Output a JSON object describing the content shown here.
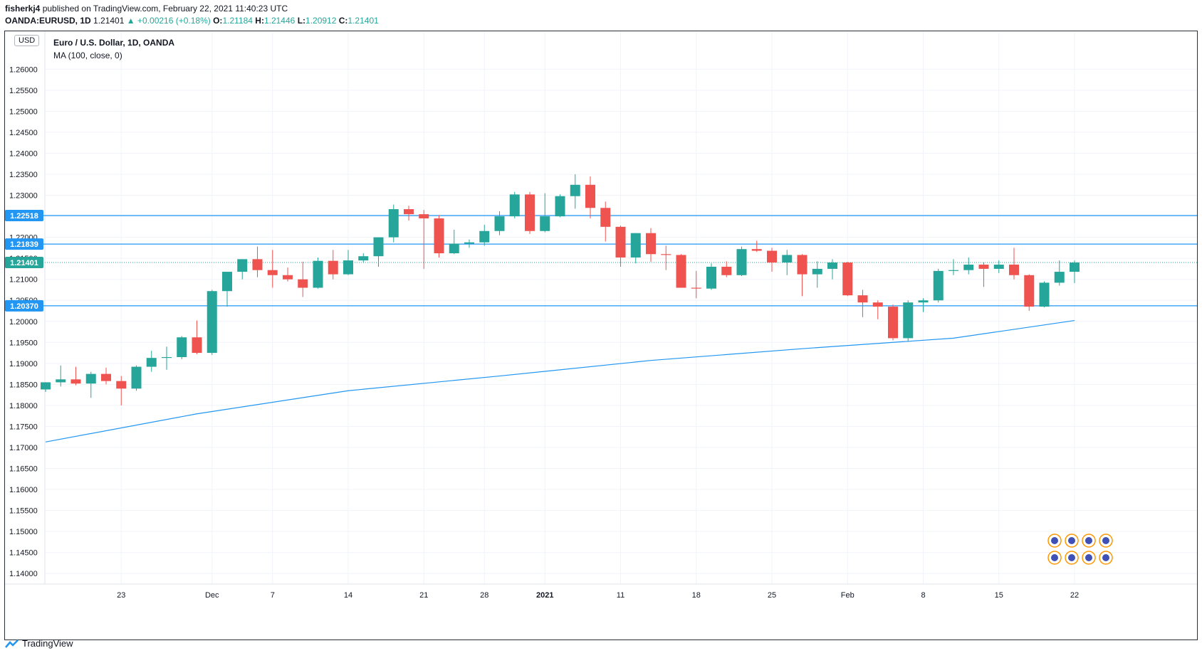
{
  "header": {
    "author": "fisherkj4",
    "published": "published on TradingView.com, February 22, 2021 11:40:23 UTC",
    "symbol": "OANDA:EURUSD, 1D",
    "last": "1.21401",
    "arrow": "▲",
    "change": "+0.00216 (+0.18%)",
    "o_label": "O:",
    "o_val": "1.21184",
    "h_label": "H:",
    "h_val": "1.21446",
    "l_label": "L:",
    "l_val": "1.20912",
    "c_label": "C:",
    "c_val": "1.21401"
  },
  "legend": {
    "title": "Euro / U.S. Dollar, 1D, OANDA",
    "indicator": "MA (100, close, 0)",
    "currency": "USD"
  },
  "footer": {
    "brand": "TradingView"
  },
  "colors": {
    "up": "#26a69a",
    "down": "#ef5350",
    "ma": "#2196f3",
    "hline": "#2196f3",
    "grid": "#f0f3fa",
    "axis_text": "#131722"
  },
  "chart_data": {
    "type": "candlestick",
    "title": "Euro / U.S. Dollar, 1D, OANDA",
    "ylabel": "USD",
    "ylim": [
      1.1375,
      1.2675
    ],
    "y_ticks": [
      "1.26000",
      "1.25500",
      "1.25000",
      "1.24500",
      "1.24000",
      "1.23500",
      "1.23000",
      "1.22500",
      "1.22000",
      "1.21500",
      "1.21000",
      "1.20500",
      "1.20000",
      "1.19500",
      "1.19000",
      "1.18500",
      "1.18000",
      "1.17500",
      "1.17000",
      "1.16500",
      "1.16000",
      "1.15500",
      "1.15000",
      "1.14500",
      "1.14000"
    ],
    "x_ticks": [
      {
        "label": "23",
        "index": 5
      },
      {
        "label": "Dec",
        "index": 11
      },
      {
        "label": "7",
        "index": 15
      },
      {
        "label": "14",
        "index": 20
      },
      {
        "label": "21",
        "index": 25
      },
      {
        "label": "28",
        "index": 29
      },
      {
        "label": "2021",
        "index": 33
      },
      {
        "label": "11",
        "index": 38
      },
      {
        "label": "18",
        "index": 43
      },
      {
        "label": "25",
        "index": 48
      },
      {
        "label": "Feb",
        "index": 53
      },
      {
        "label": "8",
        "index": 58
      },
      {
        "label": "15",
        "index": 63
      },
      {
        "label": "22",
        "index": 68
      }
    ],
    "candles": [
      [
        1.1838,
        1.1855,
        1.1832,
        1.1855
      ],
      [
        1.1855,
        1.1895,
        1.1845,
        1.1862
      ],
      [
        1.1862,
        1.1892,
        1.1848,
        1.1852
      ],
      [
        1.1852,
        1.188,
        1.1818,
        1.1875
      ],
      [
        1.1875,
        1.189,
        1.185,
        1.1858
      ],
      [
        1.1858,
        1.187,
        1.18,
        1.184
      ],
      [
        1.184,
        1.1895,
        1.1835,
        1.1892
      ],
      [
        1.1892,
        1.193,
        1.188,
        1.1913
      ],
      [
        1.1913,
        1.194,
        1.1885,
        1.1915
      ],
      [
        1.1915,
        1.1965,
        1.191,
        1.1962
      ],
      [
        1.1962,
        1.2002,
        1.1922,
        1.1925
      ],
      [
        1.1925,
        1.2075,
        1.192,
        1.2072
      ],
      [
        1.2072,
        1.2112,
        1.2035,
        1.2118
      ],
      [
        1.2118,
        1.2148,
        1.21,
        1.2148
      ],
      [
        1.2148,
        1.2178,
        1.2105,
        1.2122
      ],
      [
        1.2122,
        1.217,
        1.208,
        1.211
      ],
      [
        1.211,
        1.2128,
        1.2095,
        1.21
      ],
      [
        1.21,
        1.2142,
        1.2058,
        1.208
      ],
      [
        1.208,
        1.2152,
        1.2078,
        1.2144
      ],
      [
        1.2144,
        1.217,
        1.21,
        1.2112
      ],
      [
        1.2112,
        1.217,
        1.211,
        1.2145
      ],
      [
        1.2145,
        1.2162,
        1.214,
        1.2155
      ],
      [
        1.2155,
        1.22,
        1.213,
        1.22
      ],
      [
        1.22,
        1.2278,
        1.2188,
        1.2267
      ],
      [
        1.2267,
        1.2275,
        1.224,
        1.2255
      ],
      [
        1.2255,
        1.2265,
        1.2125,
        1.2245
      ],
      [
        1.2245,
        1.2252,
        1.2152,
        1.2162
      ],
      [
        1.2162,
        1.2218,
        1.216,
        1.2185
      ],
      [
        1.2185,
        1.2195,
        1.2175,
        1.2188
      ],
      [
        1.2188,
        1.223,
        1.218,
        1.2215
      ],
      [
        1.2215,
        1.2262,
        1.2205,
        1.225
      ],
      [
        1.225,
        1.2308,
        1.2245,
        1.2302
      ],
      [
        1.2302,
        1.2308,
        1.2208,
        1.2215
      ],
      [
        1.2215,
        1.2305,
        1.2212,
        1.225
      ],
      [
        1.225,
        1.2302,
        1.2248,
        1.2298
      ],
      [
        1.2298,
        1.235,
        1.2268,
        1.2325
      ],
      [
        1.2325,
        1.2345,
        1.2245,
        1.227
      ],
      [
        1.227,
        1.2285,
        1.219,
        1.2225
      ],
      [
        1.2225,
        1.2228,
        1.213,
        1.2152
      ],
      [
        1.2152,
        1.221,
        1.2138,
        1.221
      ],
      [
        1.221,
        1.2222,
        1.2142,
        1.216
      ],
      [
        1.216,
        1.218,
        1.2122,
        1.2158
      ],
      [
        1.2158,
        1.216,
        1.208,
        1.208
      ],
      [
        1.208,
        1.212,
        1.2055,
        1.2078
      ],
      [
        1.2078,
        1.2138,
        1.2075,
        1.213
      ],
      [
        1.213,
        1.2143,
        1.2105,
        1.211
      ],
      [
        1.211,
        1.2178,
        1.2108,
        1.2172
      ],
      [
        1.2172,
        1.2192,
        1.2165,
        1.2168
      ],
      [
        1.2168,
        1.2175,
        1.2118,
        1.214
      ],
      [
        1.214,
        1.217,
        1.211,
        1.2158
      ],
      [
        1.2158,
        1.216,
        1.206,
        1.2112
      ],
      [
        1.2112,
        1.2143,
        1.208,
        1.2125
      ],
      [
        1.2125,
        1.2148,
        1.21,
        1.214
      ],
      [
        1.214,
        1.2142,
        1.206,
        1.2062
      ],
      [
        1.2062,
        1.2075,
        1.201,
        1.2045
      ],
      [
        1.2045,
        1.205,
        1.2005,
        1.2035
      ],
      [
        1.2035,
        1.204,
        1.1955,
        1.196
      ],
      [
        1.196,
        1.205,
        1.1952,
        1.2045
      ],
      [
        1.2045,
        1.2055,
        1.2022,
        1.205
      ],
      [
        1.205,
        1.2125,
        1.2045,
        1.212
      ],
      [
        1.212,
        1.2148,
        1.211,
        1.2122
      ],
      [
        1.2122,
        1.2152,
        1.2112,
        1.2135
      ],
      [
        1.2135,
        1.214,
        1.2082,
        1.2125
      ],
      [
        1.2125,
        1.2145,
        1.2115,
        1.2135
      ],
      [
        1.2135,
        1.2175,
        1.21,
        1.211
      ],
      [
        1.211,
        1.2112,
        1.2025,
        1.2035
      ],
      [
        1.2035,
        1.2095,
        1.2033,
        1.2092
      ],
      [
        1.2092,
        1.2145,
        1.2085,
        1.2118
      ],
      [
        1.2118,
        1.2145,
        1.2091,
        1.214
      ]
    ],
    "series": [
      {
        "name": "MA (100, close, 0)",
        "type": "line",
        "points": [
          [
            0,
            1.1713
          ],
          [
            10,
            1.178
          ],
          [
            20,
            1.1835
          ],
          [
            30,
            1.187
          ],
          [
            40,
            1.1907
          ],
          [
            50,
            1.1935
          ],
          [
            60,
            1.196
          ],
          [
            68,
            1.2002
          ]
        ]
      }
    ],
    "horizontal_lines": [
      {
        "value": 1.22518,
        "label": "1.22518"
      },
      {
        "value": 1.21839,
        "label": "1.21839"
      },
      {
        "value": 1.2037,
        "label": "1.20370"
      }
    ],
    "last_price": {
      "value": 1.21401,
      "label": "1.21401"
    }
  }
}
